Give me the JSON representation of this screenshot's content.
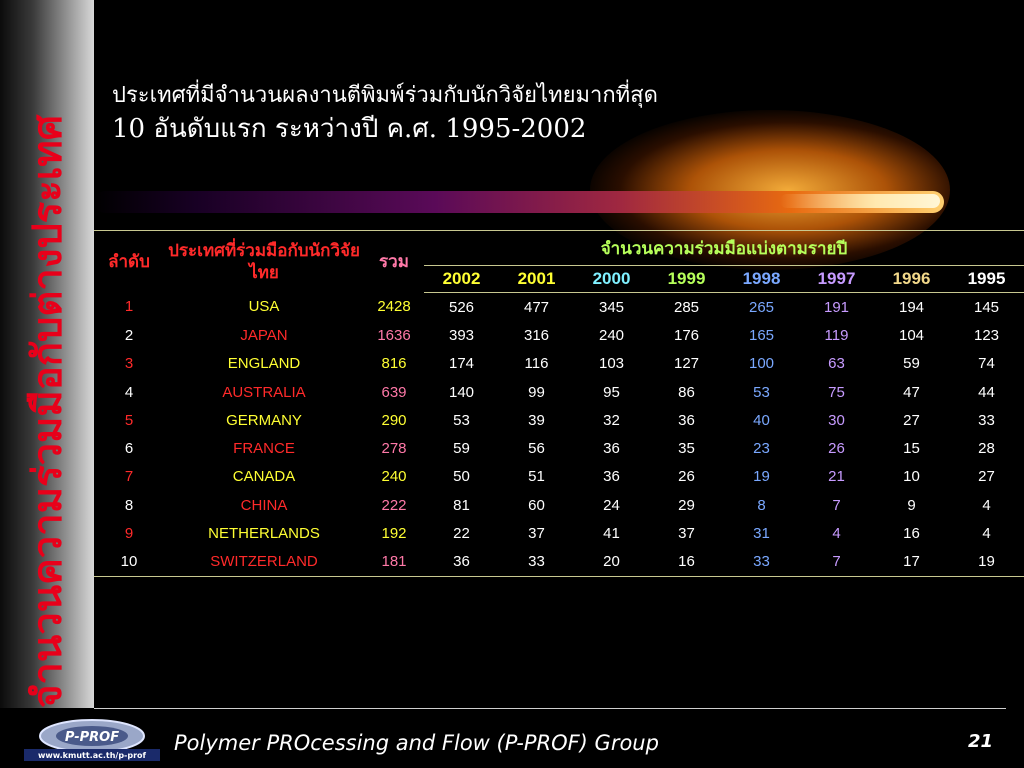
{
  "slide": {
    "side_title": "จำนวนความร่วมมือกับต่างประเทศ",
    "title_line1": "ประเทศที่มีจำนวนผลงานตีพิมพ์ร่วมกับนักวิจัยไทยมากที่สุด",
    "title_line2": "10 อันดับแรก ระหว่างปี ค.ศ. 1995-2002"
  },
  "table": {
    "headers": {
      "rank": "ลำดับ",
      "country": "ประเทศที่ร่วมมือกับนักวิจัยไทย",
      "total": "รวม",
      "yearly_group": "จำนวนความร่วมมือแบ่งตามรายปี",
      "years": [
        "2002",
        "2001",
        "2000",
        "1999",
        "1998",
        "1997",
        "1996",
        "1995"
      ]
    },
    "rows": [
      {
        "rank": "1",
        "country": "USA",
        "total": "2428",
        "values": [
          "526",
          "477",
          "345",
          "285",
          "265",
          "191",
          "194",
          "145"
        ]
      },
      {
        "rank": "2",
        "country": "JAPAN",
        "total": "1636",
        "values": [
          "393",
          "316",
          "240",
          "176",
          "165",
          "119",
          "104",
          "123"
        ]
      },
      {
        "rank": "3",
        "country": "ENGLAND",
        "total": "816",
        "values": [
          "174",
          "116",
          "103",
          "127",
          "100",
          "63",
          "59",
          "74"
        ]
      },
      {
        "rank": "4",
        "country": "AUSTRALIA",
        "total": "639",
        "values": [
          "140",
          "99",
          "95",
          "86",
          "53",
          "75",
          "47",
          "44"
        ]
      },
      {
        "rank": "5",
        "country": "GERMANY",
        "total": "290",
        "values": [
          "53",
          "39",
          "32",
          "36",
          "40",
          "30",
          "27",
          "33"
        ]
      },
      {
        "rank": "6",
        "country": "FRANCE",
        "total": "278",
        "values": [
          "59",
          "56",
          "36",
          "35",
          "23",
          "26",
          "15",
          "28"
        ]
      },
      {
        "rank": "7",
        "country": "CANADA",
        "total": "240",
        "values": [
          "50",
          "51",
          "36",
          "26",
          "19",
          "21",
          "10",
          "27"
        ]
      },
      {
        "rank": "8",
        "country": "CHINA",
        "total": "222",
        "values": [
          "81",
          "60",
          "24",
          "29",
          "8",
          "7",
          "9",
          "4"
        ]
      },
      {
        "rank": "9",
        "country": "NETHERLANDS",
        "total": "192",
        "values": [
          "22",
          "37",
          "41",
          "37",
          "31",
          "4",
          "16",
          "4"
        ]
      },
      {
        "rank": "10",
        "country": "SWITZERLAND",
        "total": "181",
        "values": [
          "36",
          "33",
          "20",
          "16",
          "33",
          "7",
          "17",
          "19"
        ]
      }
    ]
  },
  "footer": {
    "logo_text": "P-PROF",
    "logo_url": "www.kmutt.ac.th/p-prof",
    "group_name": "Polymer PROcessing and Flow (P-PROF) Group",
    "page_number": "21"
  },
  "colors": {
    "red": "#ff2a2a",
    "orange_glow": "#e86a10",
    "header_yellow": "#ffff33",
    "header_green": "#b6ff5a"
  }
}
